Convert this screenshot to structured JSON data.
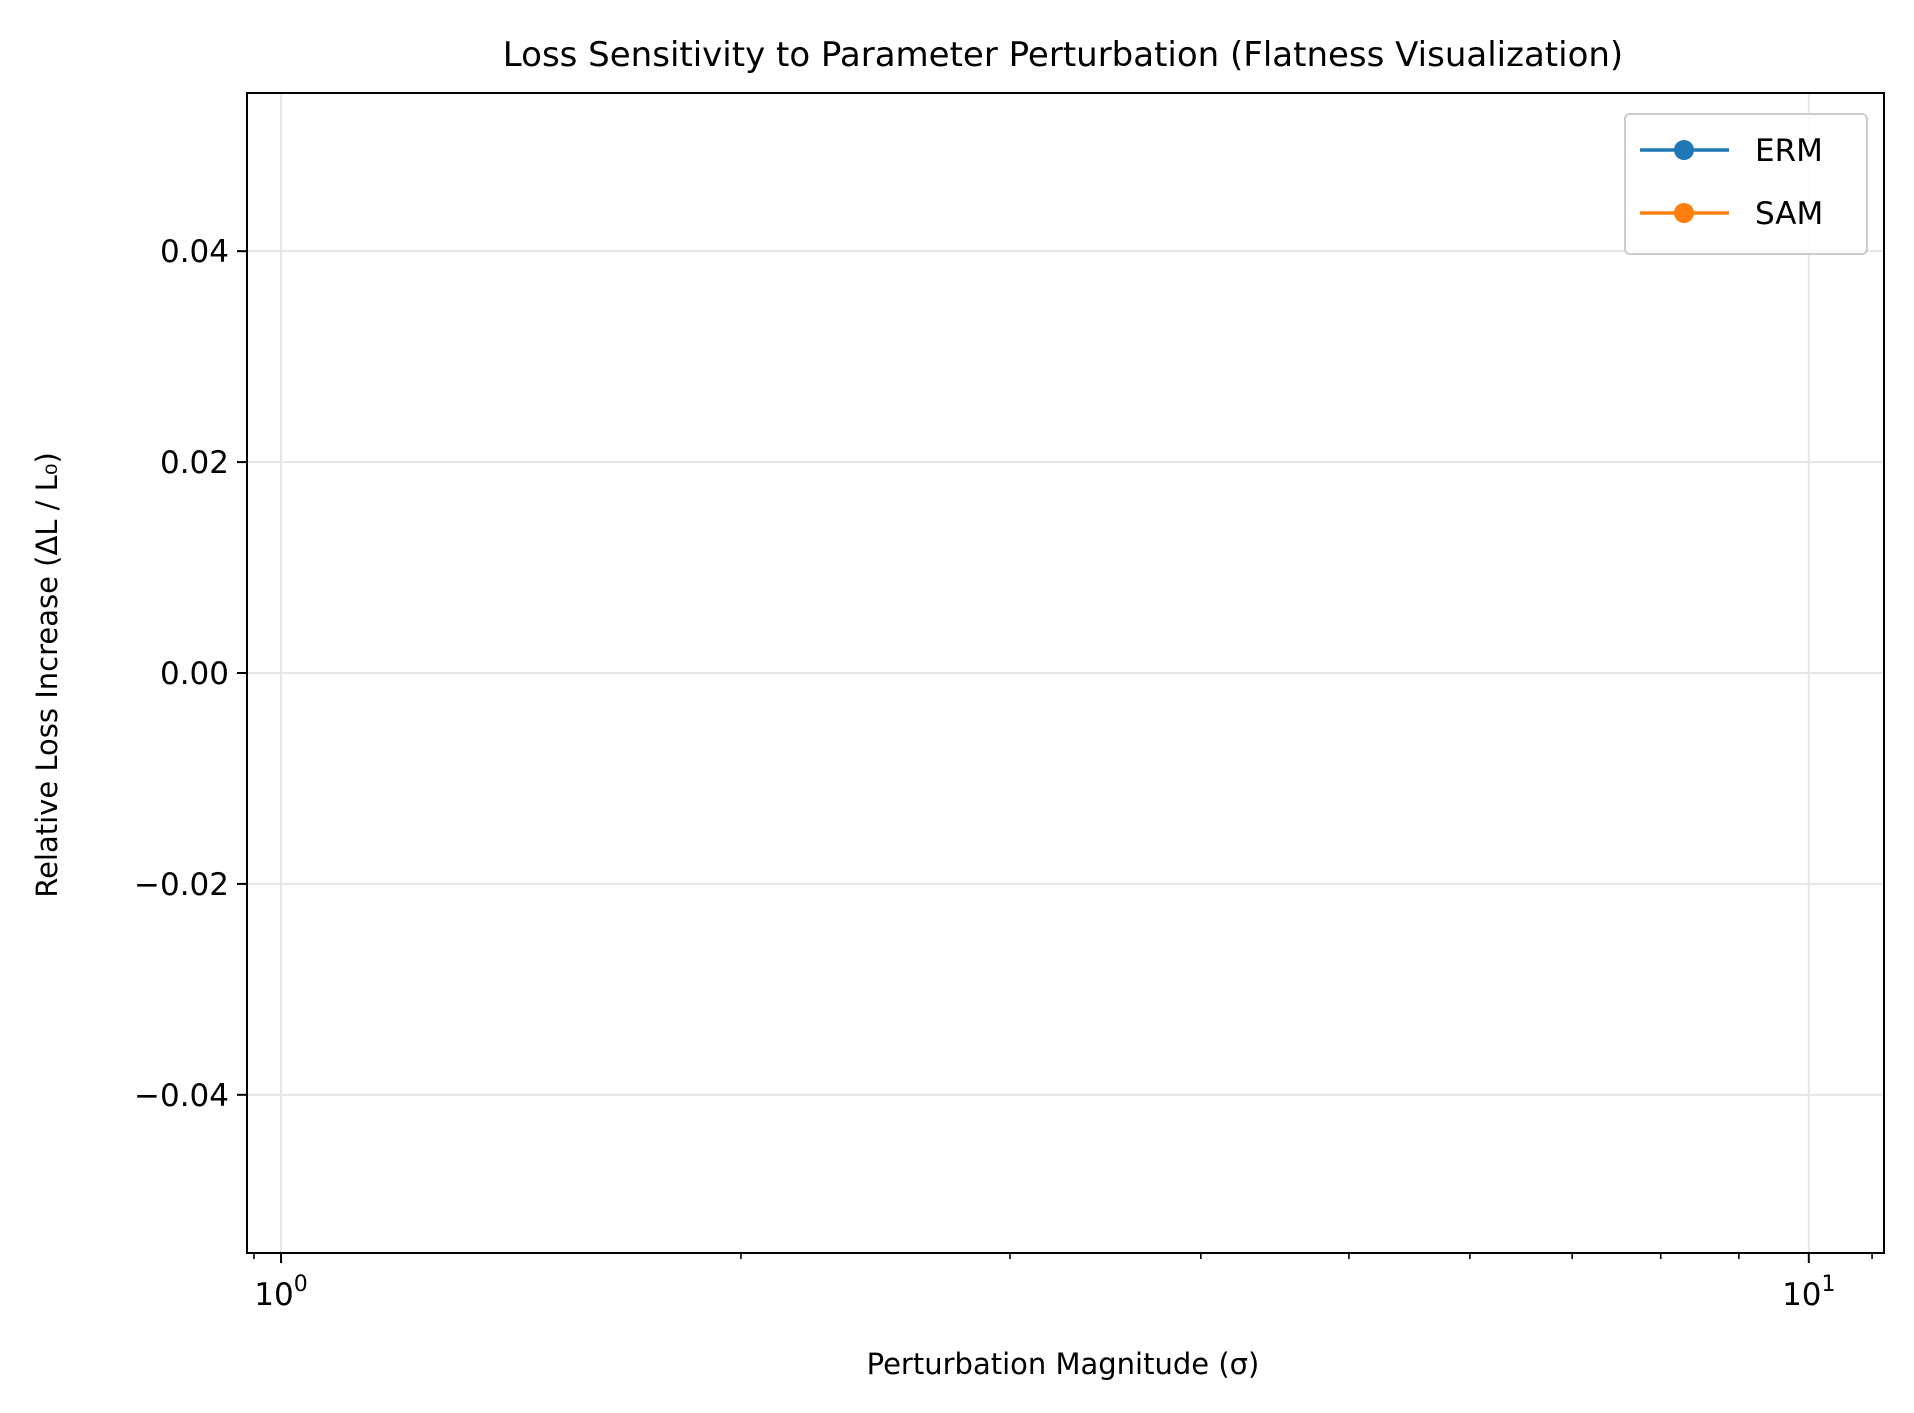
{
  "chart_data": {
    "type": "line",
    "title": "Loss Sensitivity to Parameter Perturbation (Flatness Visualization)",
    "xlabel": "Perturbation Magnitude (σ)",
    "ylabel": "Relative Loss Increase (ΔL / L₀)",
    "x_scale": "log",
    "xlim": [
      0.95,
      11.2
    ],
    "ylim": [
      -0.055,
      0.055
    ],
    "x_ticks": [
      {
        "value": 1,
        "base": "10",
        "exp": "0"
      },
      {
        "value": 10,
        "base": "10",
        "exp": "1"
      }
    ],
    "x_minor_ticks": [
      2,
      3,
      4,
      5,
      6,
      7,
      8,
      9,
      11
    ],
    "y_ticks": [
      {
        "value": -0.04,
        "label": "−0.04"
      },
      {
        "value": -0.02,
        "label": "−0.02"
      },
      {
        "value": 0.0,
        "label": "0.00"
      },
      {
        "value": 0.02,
        "label": "0.02"
      },
      {
        "value": 0.04,
        "label": "0.04"
      }
    ],
    "grid": true,
    "legend_position": "top-right",
    "series": [
      {
        "name": "ERM",
        "color": "#1f77b4",
        "marker": "circle",
        "points": []
      },
      {
        "name": "SAM",
        "color": "#ff7f0e",
        "marker": "circle",
        "points": []
      }
    ]
  }
}
